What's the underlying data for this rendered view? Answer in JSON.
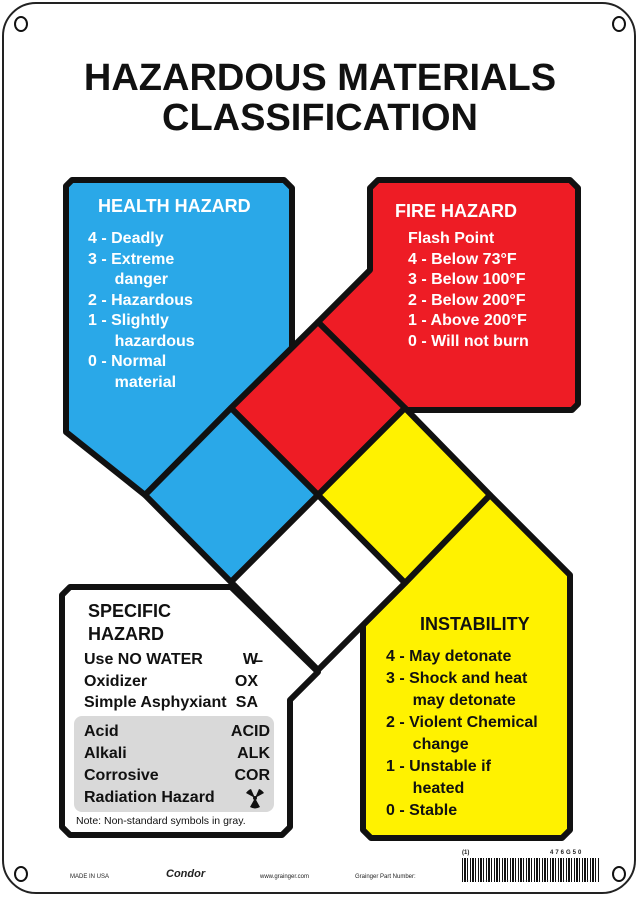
{
  "title": [
    "HAZARDOUS MATERIALS",
    "CLASSIFICATION"
  ],
  "colors": {
    "health": "#2aa8e8",
    "fire": "#ee1c25",
    "instability": "#fff200",
    "specific": "#ffffff",
    "gray_box": "#d9d9d9"
  },
  "health": {
    "heading": "HEALTH HAZARD",
    "items": [
      "4 - Deadly",
      "3 - Extreme",
      "      danger",
      "2 - Hazardous",
      "1 - Slightly",
      "      hazardous",
      "0 - Normal",
      "      material"
    ]
  },
  "fire": {
    "heading": "FIRE HAZARD",
    "items": [
      "Flash Point",
      "4 - Below 73°F",
      "3 - Below 100°F",
      "2 - Below 200°F",
      "1 - Above 200°F",
      "0 - Will not burn"
    ]
  },
  "instability": {
    "heading": "INSTABILITY",
    "items": [
      "4 - May detonate",
      "3 - Shock and heat",
      "      may detonate",
      "2 - Violent Chemical",
      "      change",
      "1 - Unstable if",
      "      heated",
      "0 - Stable"
    ]
  },
  "specific": {
    "heading": [
      "SPECIFIC",
      "HAZARD"
    ],
    "rows": [
      {
        "label": "Use NO WATER",
        "symbol": "W̶"
      },
      {
        "label": "Oxidizer",
        "symbol": "OX"
      },
      {
        "label": "Simple Asphyxiant",
        "symbol": "SA"
      }
    ],
    "gray_rows": [
      {
        "label": "Acid",
        "symbol": "ACID"
      },
      {
        "label": "Alkali",
        "symbol": "ALK"
      },
      {
        "label": "Corrosive",
        "symbol": "COR"
      },
      {
        "label": "Radiation Hazard",
        "symbol": "radiation-icon"
      }
    ],
    "note": "Note: Non-standard symbols in gray."
  },
  "footer": {
    "made_in": "MADE IN USA",
    "logo": "Condor",
    "url": "www.grainger.com",
    "part_label": "Grainger Part Number:",
    "qty": "(1)",
    "part_number": "476G50"
  }
}
